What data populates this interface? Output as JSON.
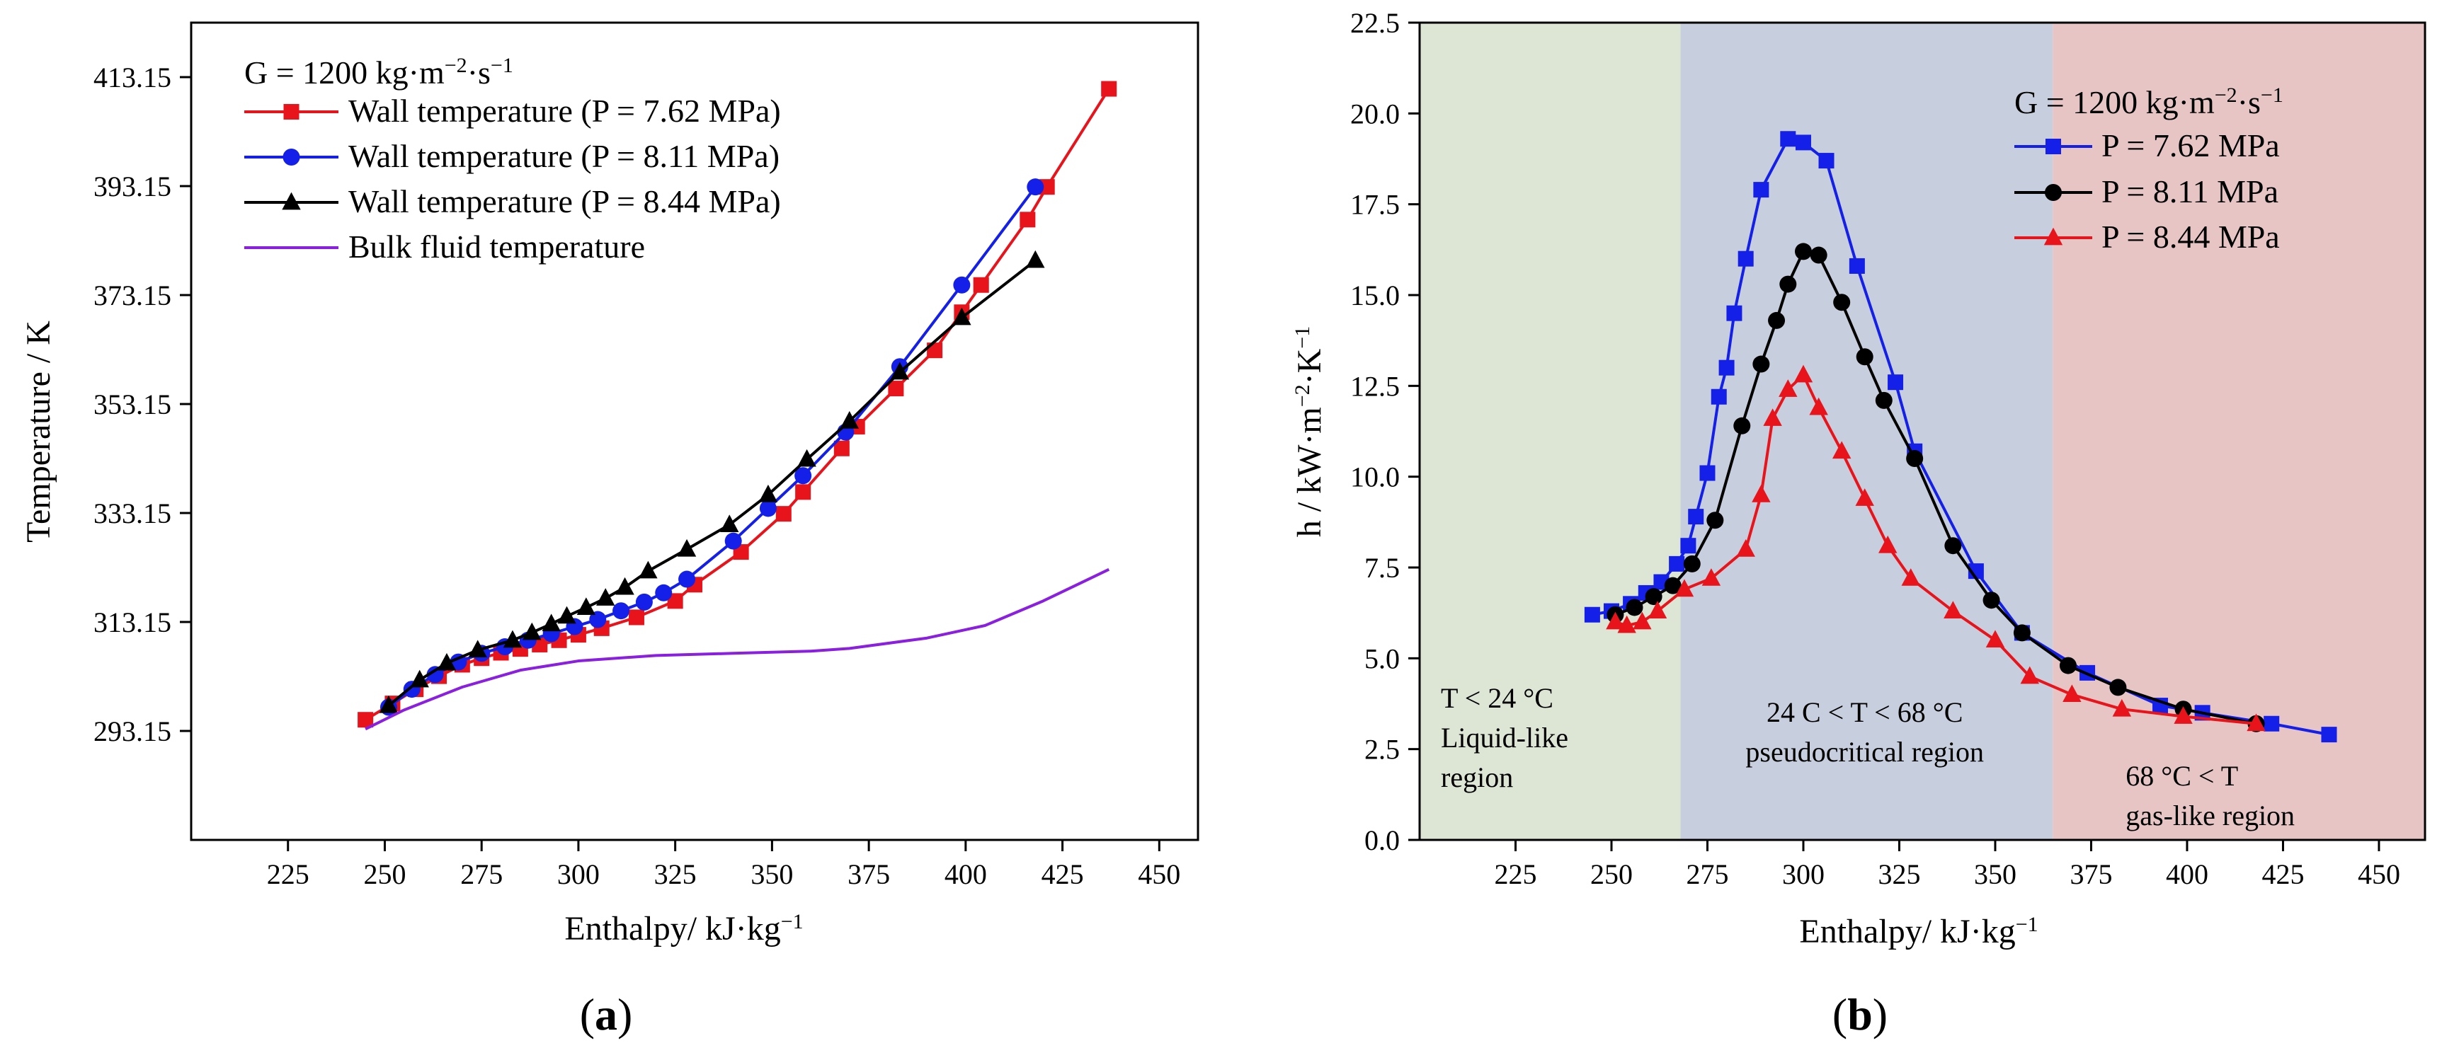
{
  "chart_data": [
    {
      "type": "line",
      "panel": "a",
      "xlabel": "Enthalpy/ kJ·kg",
      "xlabel_sup": "−1",
      "ylabel": "Temperature / K",
      "xlim": [
        200,
        460
      ],
      "ylim": [
        273.15,
        423.15
      ],
      "xticks": [
        225,
        250,
        275,
        300,
        325,
        350,
        375,
        400,
        425,
        450
      ],
      "yticks": [
        293.15,
        313.15,
        333.15,
        353.15,
        373.15,
        393.15,
        413.15
      ],
      "ytick_labels": [
        "293.15",
        "313.15",
        "333.15",
        "353.15",
        "373.15",
        "393.15",
        "413.15"
      ],
      "grid": false,
      "legend_position": "top-left",
      "legend_title": "G = 1200 kg·m",
      "legend_title_sup1": "−2",
      "legend_title_mid": "·s",
      "legend_title_sup2": "−1",
      "series": [
        {
          "name": "Wall temperature (P = 7.62 MPa)",
          "color": "#e8141b",
          "marker": "square",
          "x": [
            245,
            252,
            258,
            264,
            270,
            275,
            280,
            285,
            290,
            295,
            300,
            306,
            315,
            325,
            330,
            342,
            353,
            358,
            368,
            372,
            382,
            392,
            399,
            404,
            416,
            421,
            437
          ],
          "y": [
            295.2,
            298.2,
            300.8,
            303.2,
            305.3,
            306.5,
            307.5,
            308.2,
            309.0,
            309.8,
            310.8,
            312.0,
            314.0,
            317.0,
            320.0,
            326.0,
            333.0,
            337.0,
            345.0,
            349.0,
            356.0,
            363.0,
            370.0,
            375.0,
            387.0,
            393.0,
            411.0
          ]
        },
        {
          "name": "Wall temperature (P = 8.11 MPa)",
          "color": "#1420e8",
          "marker": "circle",
          "x": [
            251,
            257,
            263,
            269,
            275,
            281,
            287,
            293,
            299,
            305,
            311,
            317,
            322,
            328,
            340,
            349,
            358,
            369,
            383,
            399,
            418
          ],
          "y": [
            297.5,
            300.8,
            303.5,
            305.8,
            307.4,
            308.6,
            309.8,
            311.0,
            312.3,
            313.6,
            315.2,
            316.8,
            318.5,
            321.0,
            328.0,
            334.0,
            340.0,
            348.0,
            360.0,
            375.0,
            393.0
          ]
        },
        {
          "name": "Wall temperature (P = 8.44 MPa)",
          "color": "#000000",
          "marker": "triangle",
          "x": [
            251,
            259,
            266,
            274,
            283,
            288,
            293,
            297,
            302,
            307,
            312,
            318,
            328,
            339,
            349,
            359,
            370,
            383,
            399,
            418
          ],
          "y": [
            297.8,
            302.5,
            305.6,
            308.0,
            309.8,
            311.2,
            312.8,
            314.2,
            315.8,
            317.5,
            319.5,
            322.5,
            326.5,
            331.0,
            336.5,
            343.0,
            350.0,
            359.0,
            369.0,
            379.5
          ]
        },
        {
          "name": "Bulk fluid temperature",
          "color": "#8a1fe0",
          "marker": "none",
          "x": [
            245,
            255,
            270,
            285,
            300,
            320,
            340,
            360,
            370,
            390,
            405,
            420,
            437
          ],
          "y": [
            293.5,
            297.0,
            301.2,
            304.3,
            306.0,
            307.0,
            307.4,
            307.8,
            308.3,
            310.2,
            312.5,
            317.0,
            322.8
          ]
        }
      ],
      "caption_letter": "a"
    },
    {
      "type": "line",
      "panel": "b",
      "xlabel": "Enthalpy/ kJ·kg",
      "xlabel_sup": "−1",
      "ylabel": "h / kW·m",
      "ylabel_sup1": "−2",
      "ylabel_mid": "·K",
      "ylabel_sup2": "−1",
      "xlim": [
        200,
        462
      ],
      "ylim": [
        0,
        22.5
      ],
      "xticks": [
        225,
        250,
        275,
        300,
        325,
        350,
        375,
        400,
        425,
        450
      ],
      "yticks": [
        0.0,
        2.5,
        5.0,
        7.5,
        10.0,
        12.5,
        15.0,
        17.5,
        20.0,
        22.5
      ],
      "ytick_labels": [
        "0.0",
        "2.5",
        "5.0",
        "7.5",
        "10.0",
        "12.5",
        "15.0",
        "17.5",
        "20.0",
        "22.5"
      ],
      "grid": false,
      "legend_position": "top-right",
      "legend_title": "G = 1200 kg·m",
      "legend_title_sup1": "−2",
      "legend_title_mid": "·s",
      "legend_title_sup2": "−1",
      "regions": [
        {
          "x0": 200,
          "x1": 268,
          "color": "#dde5d5",
          "lines": [
            "T < 24 °C",
            "Liquid-like",
            " region"
          ]
        },
        {
          "x0": 268,
          "x1": 365,
          "color": "#c7cedd",
          "lines": [
            "24 C < T  < 68 °C",
            "pseudocritical region"
          ]
        },
        {
          "x0": 365,
          "x1": 462,
          "color": "#e8c5c5",
          "lines": [
            "68 °C < T",
            "gas-like region"
          ]
        }
      ],
      "series": [
        {
          "name": "P = 7.62 MPa",
          "color": "#1420e8",
          "marker": "square",
          "x": [
            245,
            250,
            255,
            259,
            263,
            267,
            270,
            272,
            275,
            278,
            280,
            282,
            285,
            289,
            296,
            300,
            306,
            314,
            324,
            329,
            345,
            357,
            374,
            393,
            404,
            422,
            437
          ],
          "y": [
            6.2,
            6.3,
            6.5,
            6.8,
            7.1,
            7.6,
            8.1,
            8.9,
            10.1,
            12.2,
            13.0,
            14.5,
            16.0,
            17.9,
            19.3,
            19.2,
            18.7,
            15.8,
            12.6,
            10.7,
            7.4,
            5.7,
            4.6,
            3.7,
            3.5,
            3.2,
            2.9
          ]
        },
        {
          "name": "P = 8.11 MPa",
          "color": "#000000",
          "marker": "circle",
          "x": [
            251,
            256,
            261,
            266,
            271,
            277,
            284,
            289,
            293,
            296,
            300,
            304,
            310,
            316,
            321,
            329,
            339,
            349,
            357,
            369,
            382,
            399,
            418
          ],
          "y": [
            6.2,
            6.4,
            6.7,
            7.0,
            7.6,
            8.8,
            11.4,
            13.1,
            14.3,
            15.3,
            16.2,
            16.1,
            14.8,
            13.3,
            12.1,
            10.5,
            8.1,
            6.6,
            5.7,
            4.8,
            4.2,
            3.6,
            3.2
          ]
        },
        {
          "name": "P = 8.44 MPa",
          "color": "#e8141b",
          "marker": "triangle",
          "x": [
            251,
            254,
            258,
            262,
            269,
            276,
            285,
            289,
            292,
            296,
            300,
            304,
            310,
            316,
            322,
            328,
            339,
            350,
            359,
            370,
            383,
            399,
            418
          ],
          "y": [
            6.0,
            5.9,
            6.0,
            6.3,
            6.9,
            7.2,
            8.0,
            9.5,
            11.6,
            12.4,
            12.8,
            11.9,
            10.7,
            9.4,
            8.1,
            7.2,
            6.3,
            5.5,
            4.5,
            4.0,
            3.6,
            3.4,
            3.2
          ]
        }
      ],
      "caption_letter": "b"
    }
  ]
}
